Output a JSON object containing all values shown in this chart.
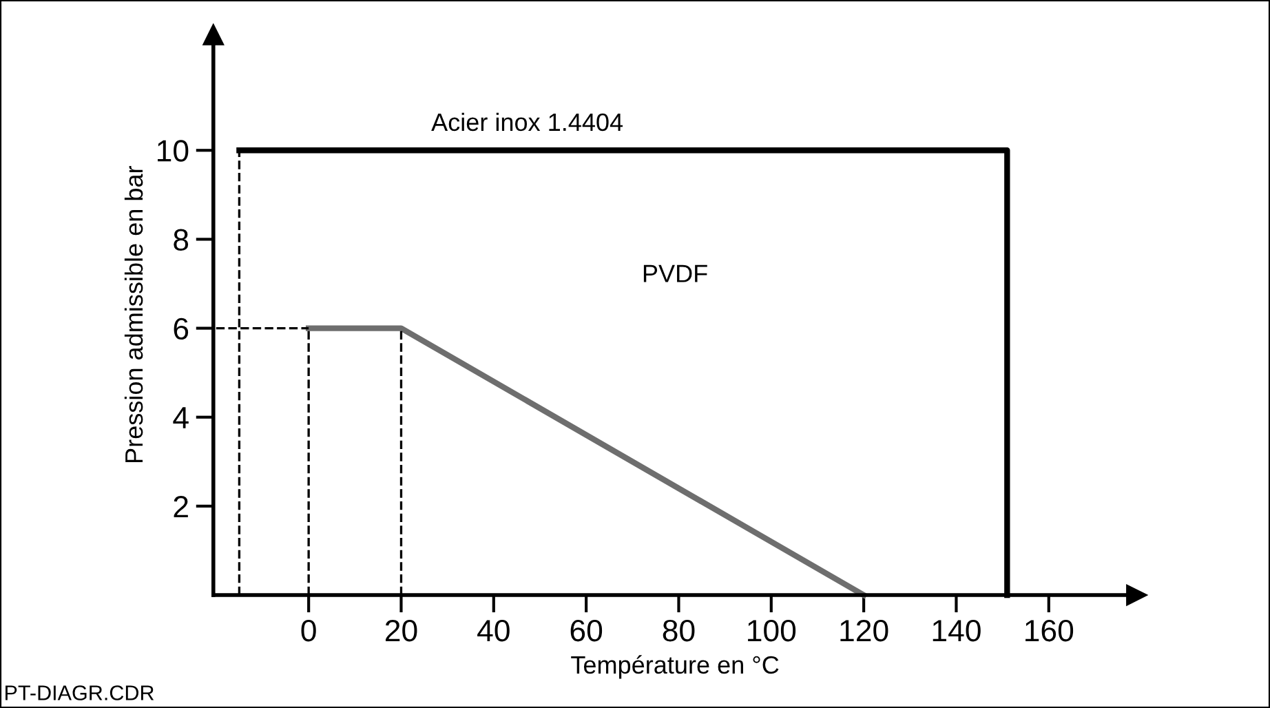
{
  "chart_data": {
    "type": "line",
    "xlabel": "Température en °C",
    "ylabel": "Pression admissible en bar",
    "series": [
      {
        "color": "#000000",
        "x": [
          -15,
          151,
          151
        ],
        "values": [
          10,
          10,
          0
        ],
        "line_style": "solid"
      },
      {
        "color": "#6e6e6e",
        "x": [
          0,
          20,
          120
        ],
        "values": [
          6,
          6,
          0
        ],
        "line_style": "solid"
      },
      {
        "color": "#000000",
        "x": [
          -15,
          -15
        ],
        "values": [
          0,
          10
        ],
        "line_style": "dashed"
      },
      {
        "color": "#000000",
        "x": [
          -20,
          0
        ],
        "values": [
          6,
          6
        ],
        "line_style": "dashed"
      },
      {
        "color": "#000000",
        "x": [
          0,
          0
        ],
        "values": [
          0,
          6
        ],
        "line_style": "dashed"
      },
      {
        "color": "#000000",
        "x": [
          20,
          20
        ],
        "values": [
          0,
          6
        ],
        "line_style": "dashed"
      }
    ],
    "annotations": [
      "Acier inox 1.4404",
      "PVDF",
      "PT-DIAGR.CDR"
    ],
    "xlim": [
      -20.6,
      179
    ],
    "ylim": [
      0,
      12.6
    ],
    "xticks": [
      0,
      20,
      40,
      60,
      80,
      100,
      120,
      140,
      160
    ],
    "yticks": [
      2,
      4,
      6,
      8,
      10
    ],
    "grid": false,
    "legend": false,
    "marker": "none"
  }
}
